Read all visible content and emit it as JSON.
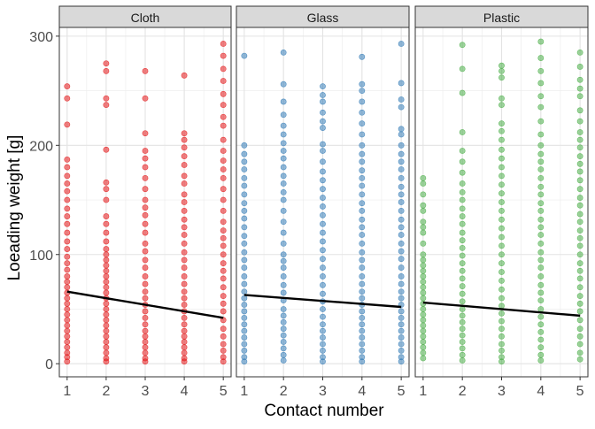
{
  "chart_data": {
    "type": "scatter",
    "ylabel": "Loeading weight [g]",
    "xlabel": "Contact number",
    "x_ticks": [
      "1",
      "2",
      "3",
      "4",
      "5"
    ],
    "y_ticks": [
      "0",
      "100",
      "200",
      "300"
    ],
    "ylim": [
      -12,
      308
    ],
    "xlim": [
      0.8,
      5.2
    ],
    "grid": true,
    "legend": "none",
    "panels": [
      {
        "strip_label": "Cloth",
        "color": "#E41A1C",
        "trend": {
          "x": [
            1,
            5
          ],
          "y": [
            66,
            42
          ]
        },
        "points": [
          {
            "x": 1,
            "y": [
              254,
              243,
              219,
              187,
              180,
              172,
              165,
              158,
              150,
              142,
              135,
              128,
              120,
              112,
              105,
              98,
              92,
              86,
              80,
              75,
              70,
              65,
              60,
              55,
              50,
              45,
              40,
              35,
              30,
              25,
              20,
              15,
              10,
              6,
              2
            ]
          },
          {
            "x": 2,
            "y": [
              275,
              268,
              243,
              237,
              196,
              166,
              160,
              150,
              135,
              128,
              120,
              112,
              105,
              100,
              95,
              90,
              85,
              80,
              75,
              70,
              65,
              60,
              55,
              50,
              45,
              40,
              35,
              30,
              25,
              20,
              15,
              10,
              5,
              2
            ]
          },
          {
            "x": 3,
            "y": [
              268,
              243,
              211,
              195,
              188,
              180,
              170,
              160,
              150,
              143,
              136,
              128,
              120,
              110,
              103,
              95,
              88,
              80,
              73,
              66,
              60,
              54,
              48,
              42,
              36,
              30,
              25,
              20,
              15,
              10,
              5,
              2
            ]
          },
          {
            "x": 4,
            "y": [
              264,
              211,
              205,
              198,
              190,
              182,
              172,
              165,
              155,
              148,
              140,
              132,
              125,
              118,
              110,
              102,
              95,
              88,
              80,
              73,
              66,
              60,
              54,
              48,
              42,
              36,
              30,
              25,
              20,
              15,
              10,
              5,
              2
            ]
          },
          {
            "x": 5,
            "y": [
              293,
              282,
              270,
              259,
              247,
              237,
              226,
              218,
              205,
              195,
              186,
              178,
              170,
              160,
              150,
              140,
              130,
              122,
              115,
              108,
              100,
              92,
              85,
              78,
              70,
              62,
              55,
              48,
              40,
              32,
              25,
              18,
              12,
              6,
              2
            ]
          }
        ]
      },
      {
        "strip_label": "Glass",
        "color": "#377EB8",
        "trend": {
          "x": [
            1,
            5
          ],
          "y": [
            63,
            52
          ]
        },
        "points": [
          {
            "x": 1,
            "y": [
              282,
              200,
              192,
              185,
              178,
              170,
              163,
              155,
              147,
              140,
              133,
              125,
              117,
              110,
              102,
              95,
              88,
              80,
              73,
              66,
              60,
              54,
              48,
              42,
              36,
              30,
              24,
              18,
              12,
              6,
              2
            ]
          },
          {
            "x": 2,
            "y": [
              285,
              256,
              240,
              228,
              218,
              210,
              202,
              195,
              188,
              180,
              172,
              165,
              157,
              150,
              140,
              130,
              120,
              110,
              100,
              94,
              88,
              80,
              72,
              65,
              58,
              50,
              44,
              38,
              32,
              26,
              20,
              14,
              8,
              3
            ]
          },
          {
            "x": 3,
            "y": [
              254,
              246,
              240,
              230,
              222,
              216,
              201,
              195,
              185,
              176,
              168,
              160,
              152,
              144,
              136,
              128,
              120,
              112,
              104,
              96,
              88,
              80,
              72,
              64,
              57,
              50,
              43,
              36,
              30,
              24,
              18,
              12,
              6,
              2
            ]
          },
          {
            "x": 4,
            "y": [
              281,
              256,
              250,
              240,
              230,
              220,
              210,
              200,
              192,
              185,
              177,
              170,
              163,
              155,
              147,
              140,
              132,
              125,
              118,
              110,
              102,
              95,
              88,
              80,
              73,
              66,
              60,
              54,
              48,
              42,
              36,
              30,
              24,
              18,
              12,
              6,
              2
            ]
          },
          {
            "x": 5,
            "y": [
              293,
              257,
              242,
              235,
              215,
              210,
              200,
              192,
              185,
              178,
              170,
              162,
              155,
              148,
              140,
              132,
              125,
              118,
              110,
              103,
              96,
              88,
              80,
              73,
              66,
              60,
              54,
              48,
              42,
              36,
              30,
              24,
              18,
              12,
              6,
              2
            ]
          }
        ]
      },
      {
        "strip_label": "Plastic",
        "color": "#4DAF4A",
        "trend": {
          "x": [
            1,
            5
          ],
          "y": [
            56,
            44
          ]
        },
        "points": [
          {
            "x": 1,
            "y": [
              170,
              165,
              155,
              145,
              140,
              130,
              125,
              120,
              110,
              100,
              95,
              90,
              85,
              80,
              75,
              70,
              65,
              60,
              55,
              50,
              45,
              40,
              35,
              30,
              25,
              20,
              15,
              10,
              5
            ]
          },
          {
            "x": 2,
            "y": [
              292,
              270,
              248,
              212,
              195,
              185,
              175,
              165,
              157,
              150,
              142,
              135,
              128,
              120,
              113,
              106,
              99,
              92,
              85,
              78,
              71,
              64,
              57,
              50,
              44,
              38,
              32,
              26,
              20,
              14,
              8,
              3
            ]
          },
          {
            "x": 3,
            "y": [
              273,
              268,
              262,
              243,
              237,
              220,
              213,
              205,
              196,
              188,
              180,
              172,
              164,
              156,
              148,
              140,
              132,
              124,
              116,
              108,
              100,
              92,
              84,
              76,
              68,
              60,
              53,
              46,
              39,
              32,
              25,
              18,
              12,
              6,
              2
            ]
          },
          {
            "x": 4,
            "y": [
              295,
              280,
              268,
              257,
              245,
              235,
              222,
              210,
              200,
              192,
              185,
              178,
              170,
              162,
              155,
              147,
              140,
              132,
              125,
              118,
              110,
              102,
              95,
              88,
              80,
              72,
              65,
              58,
              50,
              43,
              36,
              29,
              22,
              15,
              8,
              3
            ]
          },
          {
            "x": 5,
            "y": [
              285,
              272,
              260,
              252,
              245,
              232,
              222,
              212,
              205,
              198,
              190,
              183,
              176,
              168,
              160,
              152,
              145,
              137,
              130,
              122,
              115,
              108,
              100,
              92,
              85,
              78,
              70,
              62,
              55,
              48,
              40,
              32,
              25,
              18,
              10,
              4
            ]
          }
        ]
      }
    ]
  }
}
